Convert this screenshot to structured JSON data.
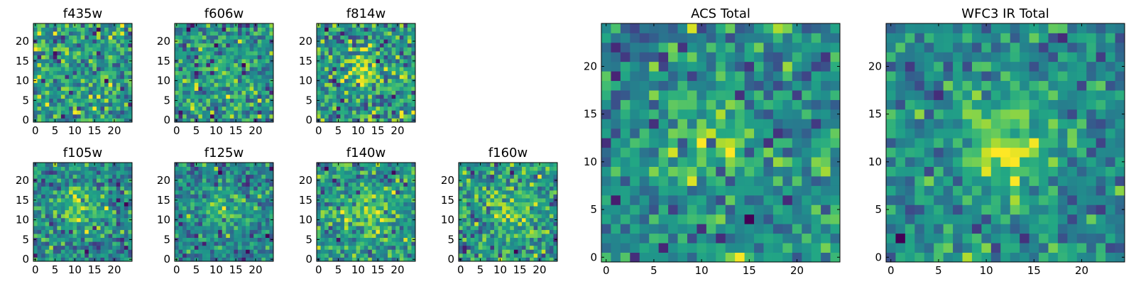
{
  "figure": {
    "background": "#ffffff",
    "colormap": "viridis"
  },
  "chart_data": [
    {
      "type": "heatmap",
      "title": "f435w",
      "grid_size": 25,
      "xticks": [
        0,
        5,
        10,
        15,
        20
      ],
      "yticks": [
        0,
        5,
        10,
        15,
        20
      ],
      "xlim": [
        -0.5,
        24.5
      ],
      "ylim": [
        -0.5,
        24.5
      ],
      "grid": false,
      "noise_level": 1.0,
      "source_peak": 0.0,
      "source_center": [
        12,
        12
      ],
      "source_width": 3.5,
      "seed": 11
    },
    {
      "type": "heatmap",
      "title": "f606w",
      "grid_size": 25,
      "xticks": [
        0,
        5,
        10,
        15,
        20
      ],
      "yticks": [
        0,
        5,
        10,
        15,
        20
      ],
      "xlim": [
        -0.5,
        24.5
      ],
      "ylim": [
        -0.5,
        24.5
      ],
      "grid": false,
      "noise_level": 1.0,
      "source_peak": 0.6,
      "source_center": [
        12,
        12
      ],
      "source_width": 3.5,
      "seed": 23
    },
    {
      "type": "heatmap",
      "title": "f814w",
      "grid_size": 25,
      "xticks": [
        0,
        5,
        10,
        15,
        20
      ],
      "yticks": [
        0,
        5,
        10,
        15,
        20
      ],
      "xlim": [
        -0.5,
        24.5
      ],
      "ylim": [
        -0.5,
        24.5
      ],
      "grid": false,
      "noise_level": 1.0,
      "source_peak": 1.3,
      "source_center": [
        12,
        13
      ],
      "source_width": 3.0,
      "seed": 37
    },
    {
      "type": "heatmap",
      "title": "f105w",
      "grid_size": 25,
      "xticks": [
        0,
        5,
        10,
        15,
        20
      ],
      "yticks": [
        0,
        5,
        10,
        15,
        20
      ],
      "xlim": [
        -0.5,
        24.5
      ],
      "ylim": [
        -0.5,
        24.5
      ],
      "grid": false,
      "noise_level": 1.0,
      "source_peak": 1.9,
      "source_center": [
        12,
        13
      ],
      "source_width": 3.5,
      "seed": 41
    },
    {
      "type": "heatmap",
      "title": "f125w",
      "grid_size": 25,
      "xticks": [
        0,
        5,
        10,
        15,
        20
      ],
      "yticks": [
        0,
        5,
        10,
        15,
        20
      ],
      "xlim": [
        -0.5,
        24.5
      ],
      "ylim": [
        -0.5,
        24.5
      ],
      "grid": false,
      "noise_level": 1.0,
      "source_peak": 1.5,
      "source_center": [
        12,
        13
      ],
      "source_width": 3.5,
      "seed": 53
    },
    {
      "type": "heatmap",
      "title": "f140w",
      "grid_size": 25,
      "xticks": [
        0,
        5,
        10,
        15,
        20
      ],
      "yticks": [
        0,
        5,
        10,
        15,
        20
      ],
      "xlim": [
        -0.5,
        24.5
      ],
      "ylim": [
        -0.5,
        24.5
      ],
      "grid": false,
      "noise_level": 1.0,
      "source_peak": 1.4,
      "source_center": [
        13,
        12
      ],
      "source_width": 3.5,
      "seed": 67
    },
    {
      "type": "heatmap",
      "title": "f160w",
      "grid_size": 25,
      "xticks": [
        0,
        5,
        10,
        15,
        20
      ],
      "yticks": [
        0,
        5,
        10,
        15,
        20
      ],
      "xlim": [
        -0.5,
        24.5
      ],
      "ylim": [
        -0.5,
        24.5
      ],
      "grid": false,
      "noise_level": 1.0,
      "source_peak": 1.7,
      "source_center": [
        12,
        12
      ],
      "source_width": 3.0,
      "seed": 79
    },
    {
      "type": "heatmap",
      "title": "ACS Total",
      "grid_size": 25,
      "xticks": [
        0,
        5,
        10,
        15,
        20
      ],
      "yticks": [
        0,
        5,
        10,
        15,
        20
      ],
      "xlim": [
        -0.5,
        24.5
      ],
      "ylim": [
        -0.5,
        24.5
      ],
      "grid": false,
      "noise_level": 0.8,
      "source_peak": 1.0,
      "source_center": [
        11,
        12
      ],
      "source_width": 4.0,
      "seed": 97
    },
    {
      "type": "heatmap",
      "title": "WFC3 IR Total",
      "grid_size": 25,
      "xticks": [
        0,
        5,
        10,
        15,
        20
      ],
      "yticks": [
        0,
        5,
        10,
        15,
        20
      ],
      "xlim": [
        -0.5,
        24.5
      ],
      "ylim": [
        -0.5,
        24.5
      ],
      "grid": false,
      "noise_level": 0.7,
      "source_peak": 2.2,
      "source_center": [
        12,
        12
      ],
      "source_width": 3.2,
      "seed": 113
    }
  ]
}
